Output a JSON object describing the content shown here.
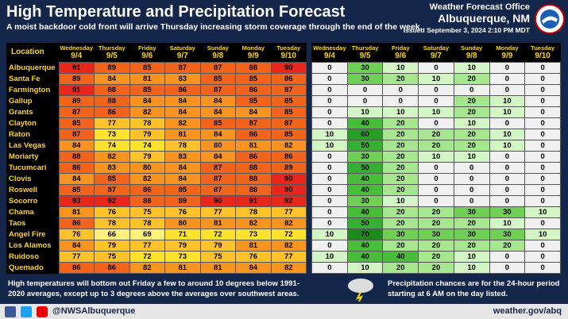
{
  "header": {
    "title": "High Temperature and Precipitation Forecast",
    "subtitle": "A moist backdoor cold front will arrive Thursday increasing storm coverage through the end of the week.",
    "office": "Weather Forecast Office",
    "location": "Albuquerque, NM",
    "issued": "Issued September 3, 2024 2:10 PM MDT"
  },
  "days": [
    {
      "name": "Wednesday",
      "date": "9/4"
    },
    {
      "name": "Thursday",
      "date": "9/5"
    },
    {
      "name": "Friday",
      "date": "9/6"
    },
    {
      "name": "Saturday",
      "date": "9/7"
    },
    {
      "name": "Sunday",
      "date": "9/8"
    },
    {
      "name": "Monday",
      "date": "9/9"
    },
    {
      "name": "Tuesday",
      "date": "9/10"
    }
  ],
  "temperature_table": {
    "location_header": "Location",
    "rows": [
      {
        "location": "Albuquerque",
        "values": [
          91,
          89,
          85,
          87,
          87,
          88,
          90
        ]
      },
      {
        "location": "Santa Fe",
        "values": [
          89,
          84,
          81,
          83,
          85,
          85,
          86
        ]
      },
      {
        "location": "Farmington",
        "values": [
          91,
          88,
          85,
          86,
          87,
          86,
          87
        ]
      },
      {
        "location": "Gallup",
        "values": [
          89,
          88,
          84,
          84,
          84,
          85,
          85
        ]
      },
      {
        "location": "Grants",
        "values": [
          87,
          86,
          82,
          84,
          84,
          84,
          85
        ]
      },
      {
        "location": "Clayton",
        "values": [
          85,
          77,
          78,
          82,
          85,
          87,
          87
        ]
      },
      {
        "location": "Raton",
        "values": [
          87,
          73,
          79,
          81,
          84,
          86,
          85
        ]
      },
      {
        "location": "Las Vegas",
        "values": [
          84,
          74,
          74,
          78,
          80,
          81,
          82
        ]
      },
      {
        "location": "Moriarty",
        "values": [
          88,
          82,
          79,
          83,
          84,
          86,
          86
        ]
      },
      {
        "location": "Tucumcari",
        "values": [
          86,
          83,
          80,
          84,
          87,
          88,
          89
        ]
      },
      {
        "location": "Clovis",
        "values": [
          84,
          85,
          82,
          84,
          87,
          88,
          90
        ]
      },
      {
        "location": "Roswell",
        "values": [
          85,
          87,
          86,
          85,
          87,
          88,
          90
        ]
      },
      {
        "location": "Socorro",
        "values": [
          93,
          92,
          88,
          89,
          90,
          91,
          92
        ]
      },
      {
        "location": "Chama",
        "values": [
          81,
          76,
          75,
          76,
          77,
          78,
          77
        ]
      },
      {
        "location": "Taos",
        "values": [
          86,
          78,
          78,
          80,
          81,
          82,
          82
        ]
      },
      {
        "location": "Angel Fire",
        "values": [
          76,
          66,
          69,
          71,
          72,
          73,
          72
        ]
      },
      {
        "location": "Los Alamos",
        "values": [
          84,
          79,
          77,
          79,
          79,
          81,
          82
        ]
      },
      {
        "location": "Ruidoso",
        "values": [
          77,
          75,
          72,
          73,
          75,
          76,
          77
        ]
      },
      {
        "location": "Quemado",
        "values": [
          86,
          86,
          82,
          81,
          81,
          84,
          82
        ]
      }
    ]
  },
  "precip_table": {
    "rows": [
      [
        0,
        30,
        10,
        0,
        10,
        0,
        0
      ],
      [
        0,
        30,
        20,
        10,
        20,
        0,
        0
      ],
      [
        0,
        0,
        0,
        0,
        0,
        0,
        0
      ],
      [
        0,
        0,
        0,
        0,
        20,
        10,
        0
      ],
      [
        0,
        10,
        10,
        10,
        20,
        10,
        0
      ],
      [
        0,
        40,
        20,
        0,
        10,
        0,
        0
      ],
      [
        10,
        60,
        20,
        20,
        20,
        10,
        0
      ],
      [
        10,
        50,
        20,
        20,
        20,
        10,
        0
      ],
      [
        0,
        30,
        20,
        10,
        10,
        0,
        0
      ],
      [
        0,
        50,
        20,
        0,
        0,
        0,
        0
      ],
      [
        0,
        40,
        20,
        0,
        0,
        0,
        0
      ],
      [
        0,
        40,
        20,
        0,
        0,
        0,
        0
      ],
      [
        0,
        30,
        10,
        0,
        0,
        0,
        0
      ],
      [
        0,
        40,
        20,
        20,
        30,
        30,
        10
      ],
      [
        0,
        50,
        20,
        20,
        20,
        10,
        0
      ],
      [
        10,
        70,
        30,
        30,
        30,
        30,
        10
      ],
      [
        0,
        40,
        20,
        20,
        20,
        20,
        0
      ],
      [
        10,
        40,
        40,
        20,
        10,
        0,
        0
      ],
      [
        0,
        10,
        20,
        20,
        10,
        0,
        0
      ]
    ]
  },
  "footer": {
    "temperature_note": "High temperatures will bottom out Friday a few to around 10 degrees below 1991-2020 averages, except up to 3 degrees above the averages over southwest areas.",
    "precip_note": "Precipitation chances are for the 24-hour period starting at 6 AM on the day listed.",
    "social": "@NWSAlbuquerque",
    "url": "weather.gov/abq"
  }
}
